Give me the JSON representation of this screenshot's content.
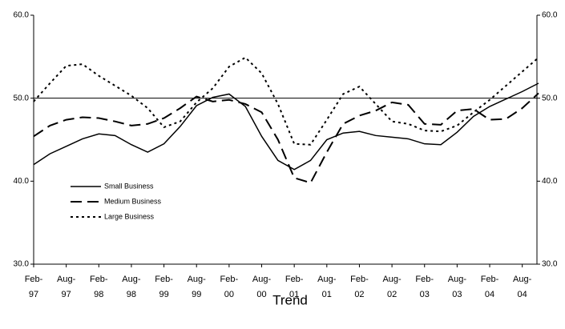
{
  "chart_data": {
    "type": "line",
    "title": "Trend",
    "categories": [
      "Feb-\n97",
      null,
      "Aug-\n97",
      null,
      "Feb-\n98",
      null,
      "Aug-\n98",
      null,
      "Feb-\n99",
      null,
      "Aug-\n99",
      null,
      "Feb-\n00",
      null,
      "Aug-\n00",
      null,
      "Feb-\n01",
      null,
      "Aug-\n01",
      null,
      "Feb-\n02",
      null,
      "Aug-\n02",
      null,
      "Feb-\n03",
      null,
      "Aug-\n03",
      null,
      "Feb-\n04",
      null,
      "Aug-\n04",
      null
    ],
    "series": [
      {
        "name": "Small Business",
        "color": "#000000",
        "dash": "solid",
        "values": [
          42.0,
          43.3,
          44.2,
          45.1,
          45.7,
          45.5,
          44.4,
          43.5,
          44.5,
          46.6,
          49.1,
          50.1,
          50.5,
          49.0,
          45.4,
          42.5,
          41.4,
          42.5,
          45.0,
          45.8,
          46.0,
          45.5,
          45.3,
          45.1,
          44.5,
          44.4,
          45.9,
          47.8,
          49.0,
          49.9,
          50.8,
          51.8
        ]
      },
      {
        "name": "Medium Business",
        "color": "#000000",
        "dash": "dashed",
        "values": [
          45.4,
          46.7,
          47.4,
          47.7,
          47.6,
          47.2,
          46.7,
          46.9,
          47.6,
          48.8,
          50.2,
          49.6,
          49.8,
          49.3,
          48.3,
          45.0,
          40.4,
          39.8,
          43.5,
          46.9,
          47.9,
          48.5,
          49.5,
          49.2,
          46.9,
          46.8,
          48.5,
          48.7,
          47.4,
          47.5,
          48.8,
          50.6
        ]
      },
      {
        "name": "Large Business",
        "color": "#000000",
        "dash": "dotted",
        "values": [
          49.6,
          51.8,
          53.9,
          54.1,
          52.7,
          51.5,
          50.3,
          48.8,
          46.5,
          47.2,
          49.5,
          51.2,
          53.8,
          54.9,
          53.0,
          49.3,
          44.5,
          44.4,
          47.4,
          50.5,
          51.4,
          49.3,
          47.2,
          46.9,
          46.1,
          46.0,
          46.7,
          48.3,
          49.8,
          51.5,
          53.2,
          54.9
        ]
      }
    ],
    "ylim": [
      30,
      60
    ],
    "yticks": [
      {
        "value": 30,
        "label": "30.0"
      },
      {
        "value": 40,
        "label": "40.0"
      },
      {
        "value": 50,
        "label": "50.0"
      },
      {
        "value": 60,
        "label": "60.0"
      }
    ],
    "y2lim": [
      30,
      60
    ],
    "y2ticks": [
      {
        "value": 30,
        "label": "30.0"
      },
      {
        "value": 40,
        "label": "40.0"
      },
      {
        "value": 50,
        "label": "50.0"
      },
      {
        "value": 60,
        "label": "60.0"
      }
    ],
    "reference_line": 50,
    "grid": false,
    "legend": "lower-left"
  }
}
